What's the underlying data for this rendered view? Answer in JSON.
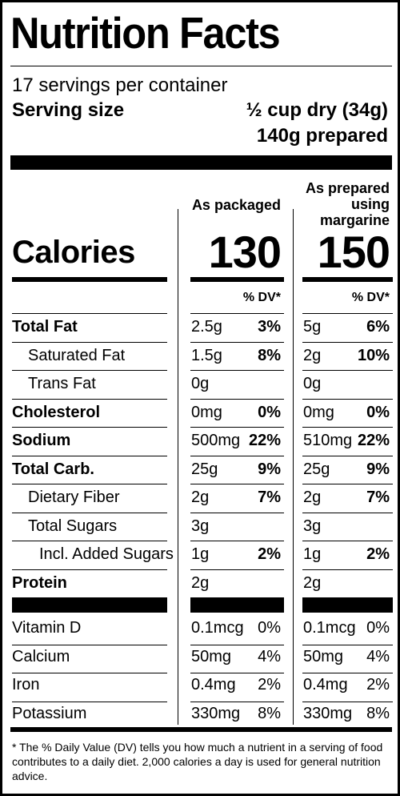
{
  "title": "Nutrition Facts",
  "servings_per_container": "17 servings per container",
  "serving_size": {
    "label": "Serving size",
    "dry": "½ cup dry (34g)",
    "prepared": "140g prepared"
  },
  "columns": {
    "packaged_header": "As packaged",
    "prepared_header_lines": [
      "As prepared",
      "using",
      "margarine"
    ]
  },
  "calories": {
    "label": "Calories",
    "packaged": "130",
    "prepared": "150"
  },
  "dv_header": "% DV*",
  "nutrients": [
    {
      "name": "Total Fat",
      "bold": true,
      "indent": 0,
      "pkg_amt": "2.5g",
      "pkg_dv": "3%",
      "prep_amt": "5g",
      "prep_dv": "6%"
    },
    {
      "name": "Saturated Fat",
      "bold": false,
      "indent": 1,
      "pkg_amt": "1.5g",
      "pkg_dv": "8%",
      "prep_amt": "2g",
      "prep_dv": "10%"
    },
    {
      "name": "Trans Fat",
      "bold": false,
      "indent": 1,
      "pkg_amt": "0g",
      "pkg_dv": "",
      "prep_amt": "0g",
      "prep_dv": ""
    },
    {
      "name": "Cholesterol",
      "bold": true,
      "indent": 0,
      "pkg_amt": "0mg",
      "pkg_dv": "0%",
      "prep_amt": "0mg",
      "prep_dv": "0%"
    },
    {
      "name": "Sodium",
      "bold": true,
      "indent": 0,
      "pkg_amt": "500mg",
      "pkg_dv": "22%",
      "prep_amt": "510mg",
      "prep_dv": "22%"
    },
    {
      "name": "Total Carb.",
      "bold": true,
      "indent": 0,
      "pkg_amt": "25g",
      "pkg_dv": "9%",
      "prep_amt": "25g",
      "prep_dv": "9%"
    },
    {
      "name": "Dietary Fiber",
      "bold": false,
      "indent": 1,
      "pkg_amt": "2g",
      "pkg_dv": "7%",
      "prep_amt": "2g",
      "prep_dv": "7%"
    },
    {
      "name": "Total Sugars",
      "bold": false,
      "indent": 1,
      "pkg_amt": "3g",
      "pkg_dv": "",
      "prep_amt": "3g",
      "prep_dv": ""
    },
    {
      "name": "Incl. Added Sugars",
      "bold": false,
      "indent": 2,
      "pkg_amt": "1g",
      "pkg_dv": "2%",
      "prep_amt": "1g",
      "prep_dv": "2%"
    },
    {
      "name": "Protein",
      "bold": true,
      "indent": 0,
      "pkg_amt": "2g",
      "pkg_dv": "",
      "prep_amt": "2g",
      "prep_dv": ""
    }
  ],
  "vitamins": [
    {
      "name": "Vitamin D",
      "pkg_amt": "0.1mcg",
      "pkg_dv": "0%",
      "prep_amt": "0.1mcg",
      "prep_dv": "0%"
    },
    {
      "name": "Calcium",
      "pkg_amt": "50mg",
      "pkg_dv": "4%",
      "prep_amt": "50mg",
      "prep_dv": "4%"
    },
    {
      "name": "Iron",
      "pkg_amt": "0.4mg",
      "pkg_dv": "2%",
      "prep_amt": "0.4mg",
      "prep_dv": "2%"
    },
    {
      "name": "Potassium",
      "pkg_amt": "330mg",
      "pkg_dv": "8%",
      "prep_amt": "330mg",
      "prep_dv": "8%"
    }
  ],
  "footnote": "* The % Daily Value (DV) tells you how much a nutrient in a serving of food contributes to a daily diet. 2,000 calories a day is used for general nutrition advice."
}
